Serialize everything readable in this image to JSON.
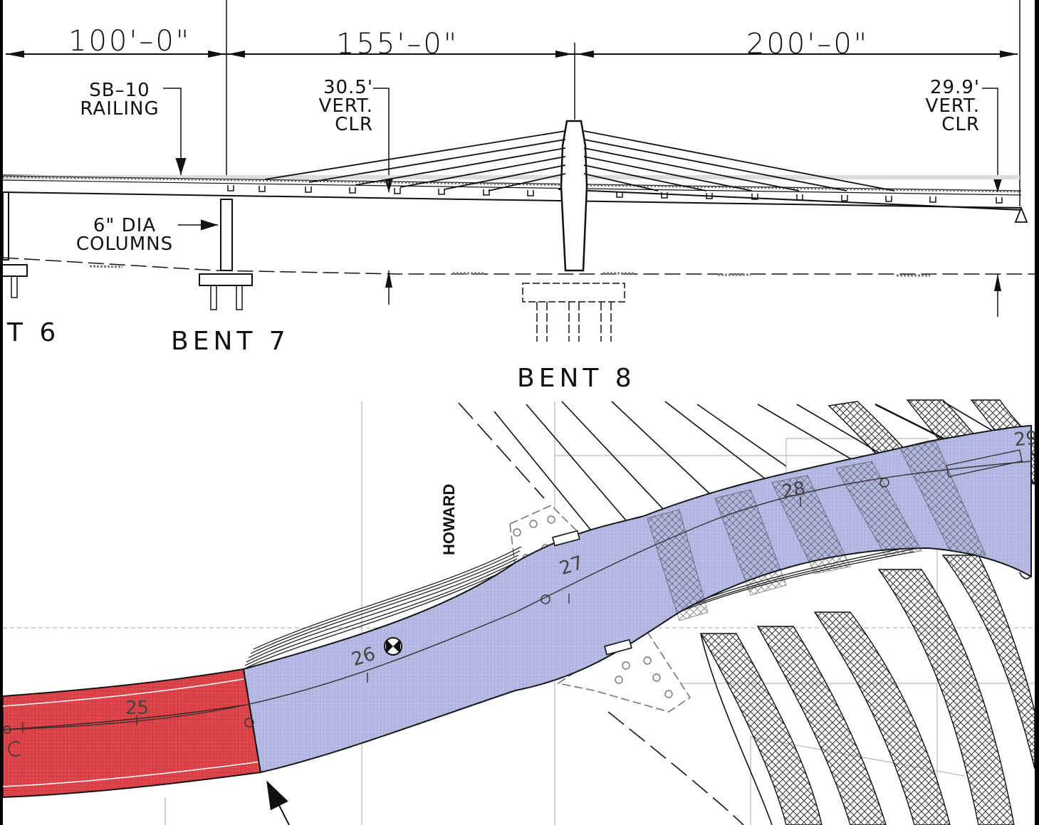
{
  "elevation": {
    "dimensions": [
      "100'–0\"",
      "155'–0\"",
      "200'–0\""
    ],
    "notes": {
      "railing": [
        "SB–10",
        "RAILING"
      ],
      "clearance_left": [
        "30.5'",
        "VERT.",
        "CLR"
      ],
      "clearance_right": [
        "29.9'",
        "VERT.",
        "CLR"
      ],
      "columns": [
        "6\" DIA",
        "COLUMNS"
      ]
    },
    "bents": [
      "T 6",
      "BENT 7",
      "BENT 8"
    ]
  },
  "plan": {
    "street_label": "HOWARD",
    "stations": [
      "25",
      "26",
      "27",
      "28",
      "29"
    ],
    "colors": {
      "existing_span": "#e0474c",
      "proposed_span": "#b8bce4",
      "outline": "#333333"
    }
  }
}
